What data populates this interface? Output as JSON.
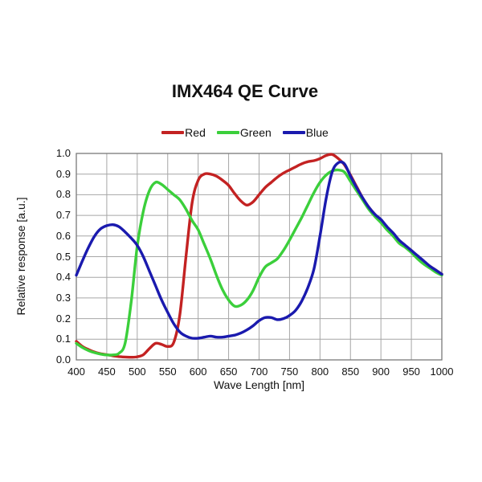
{
  "title": "IMX464 QE Curve",
  "chart_data": {
    "type": "line",
    "title": "IMX464 QE Curve",
    "xlabel": "Wave Length [nm]",
    "ylabel": "Relative response [a.u.]",
    "xlim": [
      400,
      1000
    ],
    "ylim": [
      0.0,
      1.0
    ],
    "grid": true,
    "legend_position": "top-center",
    "frame_color": "#7a7a7a",
    "grid_color": "#a6a6a6",
    "x_ticks": [
      400,
      450,
      500,
      550,
      600,
      650,
      700,
      750,
      800,
      850,
      900,
      950,
      1000
    ],
    "y_ticks": [
      0.0,
      0.1,
      0.2,
      0.3,
      0.4,
      0.5,
      0.6,
      0.7,
      0.8,
      0.9,
      1.0
    ],
    "x": [
      400,
      410,
      420,
      430,
      440,
      450,
      460,
      470,
      480,
      490,
      500,
      510,
      520,
      530,
      540,
      550,
      560,
      570,
      580,
      590,
      600,
      610,
      620,
      630,
      640,
      650,
      660,
      670,
      680,
      690,
      700,
      710,
      720,
      730,
      740,
      750,
      760,
      770,
      780,
      790,
      800,
      810,
      820,
      830,
      840,
      850,
      860,
      870,
      880,
      890,
      900,
      910,
      920,
      930,
      940,
      950,
      960,
      970,
      980,
      990,
      1000
    ],
    "series": [
      {
        "name": "Red",
        "color": "#c32222",
        "values": [
          0.09,
          0.065,
          0.05,
          0.038,
          0.03,
          0.025,
          0.02,
          0.016,
          0.014,
          0.013,
          0.015,
          0.025,
          0.055,
          0.08,
          0.075,
          0.065,
          0.085,
          0.22,
          0.5,
          0.76,
          0.87,
          0.9,
          0.9,
          0.89,
          0.87,
          0.845,
          0.805,
          0.77,
          0.75,
          0.765,
          0.8,
          0.835,
          0.86,
          0.885,
          0.905,
          0.92,
          0.935,
          0.95,
          0.96,
          0.965,
          0.975,
          0.99,
          0.995,
          0.975,
          0.945,
          0.895,
          0.84,
          0.785,
          0.74,
          0.705,
          0.675,
          0.64,
          0.61,
          0.575,
          0.55,
          0.53,
          0.5,
          0.475,
          0.455,
          0.435,
          0.415
        ]
      },
      {
        "name": "Green",
        "color": "#3bcf3b",
        "values": [
          0.08,
          0.06,
          0.045,
          0.035,
          0.028,
          0.024,
          0.024,
          0.032,
          0.08,
          0.28,
          0.55,
          0.72,
          0.82,
          0.86,
          0.85,
          0.825,
          0.8,
          0.775,
          0.73,
          0.675,
          0.63,
          0.56,
          0.49,
          0.41,
          0.34,
          0.29,
          0.26,
          0.265,
          0.29,
          0.335,
          0.4,
          0.45,
          0.47,
          0.49,
          0.53,
          0.58,
          0.635,
          0.69,
          0.75,
          0.81,
          0.86,
          0.895,
          0.915,
          0.92,
          0.91,
          0.865,
          0.82,
          0.775,
          0.73,
          0.695,
          0.665,
          0.63,
          0.6,
          0.565,
          0.545,
          0.52,
          0.49,
          0.465,
          0.445,
          0.425,
          0.41
        ]
      },
      {
        "name": "Blue",
        "color": "#1a1aae",
        "values": [
          0.41,
          0.48,
          0.545,
          0.6,
          0.635,
          0.65,
          0.655,
          0.645,
          0.62,
          0.59,
          0.555,
          0.5,
          0.43,
          0.36,
          0.29,
          0.23,
          0.175,
          0.135,
          0.115,
          0.105,
          0.105,
          0.11,
          0.115,
          0.11,
          0.11,
          0.115,
          0.12,
          0.13,
          0.145,
          0.165,
          0.19,
          0.205,
          0.205,
          0.195,
          0.2,
          0.215,
          0.24,
          0.285,
          0.35,
          0.44,
          0.6,
          0.78,
          0.91,
          0.955,
          0.95,
          0.89,
          0.835,
          0.785,
          0.74,
          0.705,
          0.68,
          0.645,
          0.615,
          0.58,
          0.555,
          0.53,
          0.505,
          0.48,
          0.455,
          0.435,
          0.415
        ]
      }
    ]
  }
}
